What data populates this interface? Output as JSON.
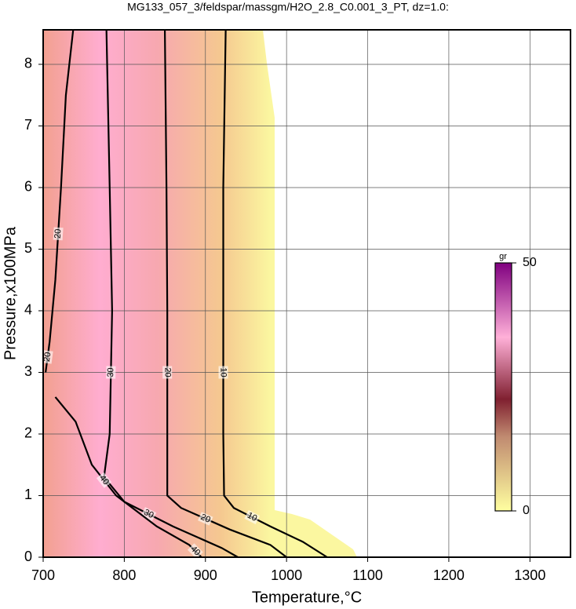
{
  "chart_data": {
    "type": "contour",
    "title": "MG133_057_3/feldspar/massgm/H2O_2.8_C0.001_3_PT, dz=1.0:",
    "x_label": "Temperature,°C",
    "y_label": "Pressure,x100MPa",
    "xlim": [
      700,
      1350
    ],
    "ylim": [
      0,
      8.56
    ],
    "xticks": [
      700,
      800,
      900,
      1000,
      1100,
      1200,
      1300
    ],
    "yticks": [
      0,
      1,
      2,
      3,
      4,
      5,
      6,
      7,
      8
    ],
    "grid": true,
    "contours": [
      {
        "level": 10,
        "x": [
          925,
          922,
          922,
          922,
          923,
          935,
          980,
          1020,
          1050
        ],
        "y": [
          8.56,
          6,
          4,
          2,
          1,
          0.8,
          0.5,
          0.25,
          0
        ]
      },
      {
        "level": 20,
        "x": [
          850,
          852,
          853,
          853,
          853,
          870,
          930,
          980,
          1000
        ],
        "y": [
          8.56,
          6,
          4,
          2,
          1,
          0.8,
          0.45,
          0.2,
          0
        ]
      },
      {
        "level": 30,
        "x": [
          778,
          782,
          785,
          782,
          775,
          800,
          860,
          920,
          940
        ],
        "y": [
          8.56,
          6,
          4,
          2,
          1.3,
          0.9,
          0.5,
          0.15,
          0
        ]
      },
      {
        "level": 40,
        "x": [
          715,
          740,
          760,
          790,
          840,
          880,
          895
        ],
        "y": [
          2.6,
          2.2,
          1.5,
          1.0,
          0.5,
          0.2,
          0
        ]
      },
      {
        "level": 20,
        "x": [
          737,
          728,
          722,
          715,
          708,
          703
        ],
        "y": [
          8.56,
          7.5,
          6,
          4.5,
          3.5,
          3.0
        ]
      }
    ],
    "colorbar": {
      "label": "gr",
      "lim": [
        0,
        50
      ],
      "ticks": [
        0,
        50
      ]
    }
  }
}
